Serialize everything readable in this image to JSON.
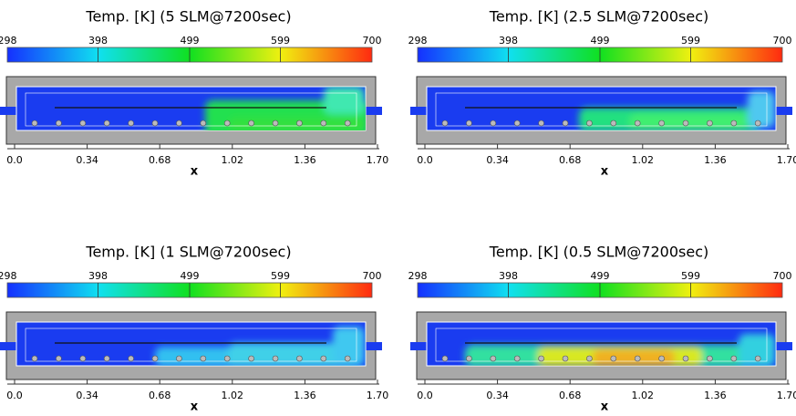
{
  "panels": [
    {
      "title": "Temp. [K] (5 SLM@7200sec)",
      "colorbar_ticks": [
        298,
        398,
        499,
        599,
        700
      ],
      "xticks": [
        {
          "value": 0,
          "label": "0.0"
        },
        0.34,
        0.68,
        1.02,
        1.36,
        {
          "value": 1.7,
          "label": "1.70"
        }
      ],
      "xlabel": "x"
    },
    {
      "title": "Temp. [K] (2.5 SLM@7200sec)",
      "colorbar_ticks": [
        298,
        398,
        499,
        599,
        700
      ],
      "xticks": [
        {
          "value": 0,
          "label": "0.0"
        },
        0.34,
        0.68,
        1.02,
        1.36,
        {
          "value": 1.7,
          "label": "1.70"
        }
      ],
      "xlabel": "x"
    },
    {
      "title": "Temp. [K] (1 SLM@7200sec)",
      "colorbar_ticks": [
        298,
        398,
        499,
        599,
        700
      ],
      "xticks": [
        {
          "value": 0,
          "label": "0.0"
        },
        0.34,
        0.68,
        1.02,
        1.36,
        {
          "value": 1.7,
          "label": "1.70"
        }
      ],
      "xlabel": "x"
    },
    {
      "title": "Temp. [K] (0.5 SLM@7200sec)",
      "colorbar_ticks": [
        298,
        398,
        499,
        599,
        700
      ],
      "xticks": [
        {
          "value": 0,
          "label": "0.0"
        },
        0.34,
        0.68,
        1.02,
        1.36,
        {
          "value": 1.7,
          "label": "1.70"
        }
      ],
      "xlabel": "x"
    }
  ]
}
